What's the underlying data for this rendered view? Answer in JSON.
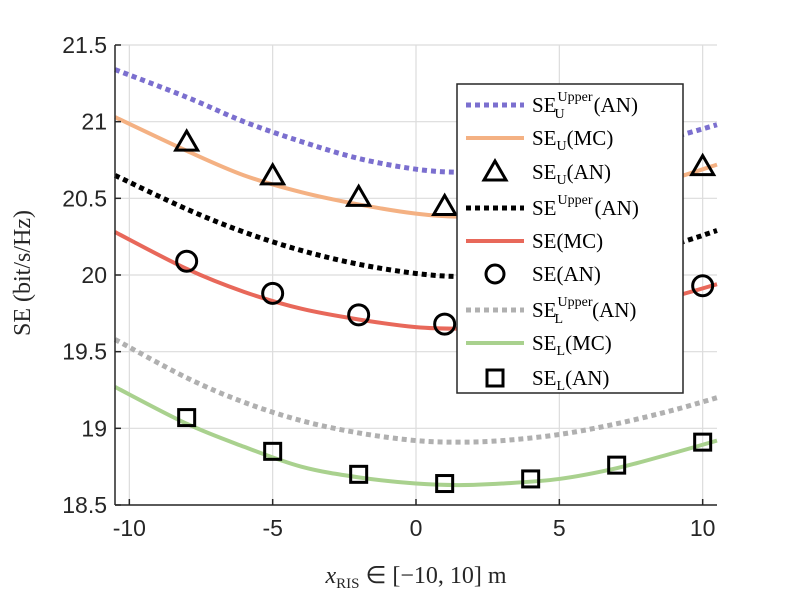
{
  "chart_data": {
    "type": "line",
    "title": "",
    "xlabel": "x_RIS ∈ [−10, 10] m",
    "ylabel": "SE (bit/s/Hz)",
    "xlim": [
      -10.5,
      10.5
    ],
    "ylim": [
      18.5,
      21.5
    ],
    "xticks": [
      -10,
      -5,
      0,
      5,
      10
    ],
    "xtick_labels": [
      "-10",
      "-5",
      "0",
      "5",
      "10"
    ],
    "yticks": [
      18.5,
      19,
      19.5,
      20,
      20.5,
      21,
      21.5
    ],
    "ytick_labels": [
      "18.5",
      "19",
      "19.5",
      "20",
      "20.5",
      "21",
      "21.5"
    ],
    "grid": true,
    "legend_position": "top-right",
    "series": [
      {
        "name": "SE_U^Upper(AN)",
        "style": "dotted",
        "color": "#7b6fcf",
        "x": [
          -10.5,
          -8,
          -6,
          -4,
          -2,
          0,
          1.5,
          3,
          5,
          7,
          9,
          10.5
        ],
        "y": [
          21.34,
          21.16,
          21.0,
          20.87,
          20.76,
          20.69,
          20.67,
          20.68,
          20.72,
          20.8,
          20.9,
          20.98
        ]
      },
      {
        "name": "SE_U(MC)",
        "style": "solid",
        "color": "#f4b183",
        "x": [
          -10.5,
          -8,
          -6,
          -4,
          -2,
          0,
          1.5,
          3,
          5,
          7,
          9,
          10.5
        ],
        "y": [
          21.03,
          20.81,
          20.65,
          20.54,
          20.46,
          20.4,
          20.38,
          20.39,
          20.44,
          20.52,
          20.63,
          20.72
        ]
      },
      {
        "name": "SE_U(AN)",
        "style": "marker",
        "marker": "triangle",
        "color": "#000000",
        "x": [
          -8,
          -5,
          -2,
          1,
          4,
          7,
          10
        ],
        "y": [
          20.86,
          20.64,
          20.5,
          20.44,
          20.45,
          20.54,
          20.7
        ]
      },
      {
        "name": "SE^Upper(AN)",
        "style": "dotted",
        "color": "#000000",
        "x": [
          -10.5,
          -8,
          -6,
          -4,
          -2,
          0,
          1.5,
          3,
          5,
          7,
          9,
          10.5
        ],
        "y": [
          20.65,
          20.43,
          20.28,
          20.16,
          20.07,
          20.01,
          19.99,
          20.0,
          20.04,
          20.11,
          20.2,
          20.29
        ]
      },
      {
        "name": "SE(MC)",
        "style": "solid",
        "color": "#e8685a",
        "x": [
          -10.5,
          -8,
          -6,
          -4,
          -2,
          0,
          1.5,
          3,
          5,
          7,
          9,
          10.5
        ],
        "y": [
          20.28,
          20.04,
          19.89,
          19.78,
          19.71,
          19.66,
          19.65,
          19.66,
          19.7,
          19.77,
          19.86,
          19.94
        ]
      },
      {
        "name": "SE(AN)",
        "style": "marker",
        "marker": "circle",
        "color": "#000000",
        "x": [
          -8,
          -5,
          -2,
          1,
          4,
          7,
          10
        ],
        "y": [
          20.09,
          19.88,
          19.74,
          19.68,
          19.7,
          19.78,
          19.93
        ]
      },
      {
        "name": "SE_L^Upper(AN)",
        "style": "dotted",
        "color": "#b0b0b0",
        "x": [
          -10.5,
          -8,
          -6,
          -4,
          -2,
          0,
          1.5,
          3,
          5,
          7,
          9,
          10.5
        ],
        "y": [
          19.58,
          19.33,
          19.17,
          19.05,
          18.97,
          18.92,
          18.91,
          18.92,
          18.96,
          19.03,
          19.12,
          19.2
        ]
      },
      {
        "name": "SE_L(MC)",
        "style": "solid",
        "color": "#a9d18e",
        "x": [
          -10.5,
          -8,
          -6,
          -4,
          -2,
          0,
          1.5,
          3,
          5,
          7,
          9,
          10.5
        ],
        "y": [
          19.27,
          19.03,
          18.88,
          18.75,
          18.68,
          18.64,
          18.63,
          18.64,
          18.67,
          18.74,
          18.84,
          18.92
        ]
      },
      {
        "name": "SE_L(AN)",
        "style": "marker",
        "marker": "square",
        "color": "#000000",
        "x": [
          -8,
          -5,
          -2,
          1,
          4,
          7,
          10
        ],
        "y": [
          19.07,
          18.85,
          18.7,
          18.64,
          18.67,
          18.76,
          18.91
        ]
      }
    ]
  }
}
